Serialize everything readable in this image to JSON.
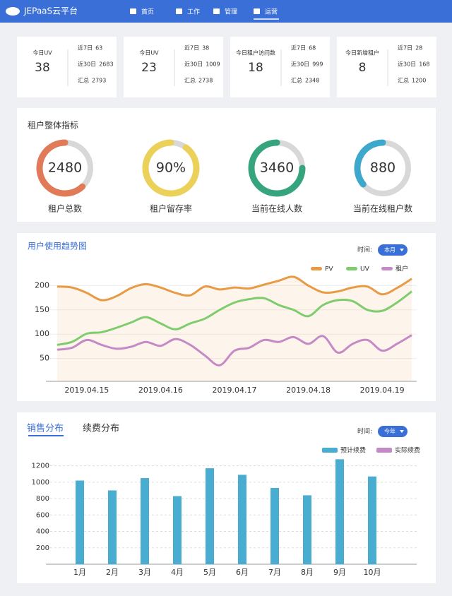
{
  "nav": {
    "brand": "JEPaaS云平台",
    "items": [
      "首页",
      "工作",
      "管理",
      "运营"
    ]
  },
  "stats": [
    {
      "label": "今日UV",
      "value": 38,
      "rows": [
        {
          "label": "近7日",
          "value": 63
        },
        {
          "label": "近30日",
          "value": 2683
        },
        {
          "label": "汇总",
          "value": 2793
        }
      ]
    },
    {
      "label": "今日UV",
      "value": 23,
      "rows": [
        {
          "label": "近7日",
          "value": 38
        },
        {
          "label": "近30日",
          "value": 1009
        },
        {
          "label": "汇总",
          "value": 2738
        }
      ]
    },
    {
      "label": "今日租户访问数",
      "value": 18,
      "rows": [
        {
          "label": "近7日",
          "value": 68
        },
        {
          "label": "近30日",
          "value": 999
        },
        {
          "label": "汇总",
          "value": 2348
        }
      ]
    },
    {
      "label": "今日新增租户",
      "value": 8,
      "rows": [
        {
          "label": "近7日",
          "value": 28
        },
        {
          "label": "近30日",
          "value": 168
        },
        {
          "label": "汇总",
          "value": 1200
        }
      ]
    }
  ],
  "overview": {
    "title": "租户整体指标",
    "gauges": [
      {
        "label": "租户总数",
        "value": 2480,
        "progress": 62,
        "color": "#e07a58"
      },
      {
        "label": "租户留存率",
        "value": 90,
        "value_label": "90%",
        "progress": 90,
        "color": "#ebd05a"
      },
      {
        "label": "当前在线人数",
        "value": 3460,
        "progress": 75,
        "color": "#36a57d"
      },
      {
        "label": "当前在线租户数",
        "value": 880,
        "progress": 36,
        "color": "#3ea8cc"
      }
    ]
  },
  "chart_data": [
    {
      "type": "line",
      "title": "用户使用趋势图",
      "time_label": "时间:",
      "period": "本月",
      "categories": [
        null,
        null,
        "2019.04.15",
        null,
        null,
        null,
        null,
        "2019.04.16",
        null,
        null,
        null,
        null,
        "2019.04.17",
        null,
        null,
        null,
        null,
        "2019.04.18",
        null,
        null,
        null,
        null,
        "2019.04.19",
        null,
        null
      ],
      "series": [
        {
          "name": "PV",
          "color": "#e89a45",
          "values": [
            198,
            196,
            185,
            170,
            178,
            195,
            203,
            196,
            185,
            180,
            198,
            192,
            196,
            194,
            202,
            210,
            218,
            200,
            186,
            188,
            196,
            198,
            182,
            195,
            214
          ]
        },
        {
          "name": "UV",
          "color": "#7fcc6e",
          "values": [
            78,
            84,
            101,
            104,
            113,
            124,
            135,
            122,
            110,
            122,
            132,
            150,
            165,
            172,
            174,
            160,
            150,
            137,
            160,
            170,
            168,
            150,
            148,
            165,
            188
          ]
        },
        {
          "name": "租户",
          "color": "#c58ac6",
          "values": [
            68,
            72,
            88,
            78,
            70,
            74,
            84,
            76,
            90,
            78,
            56,
            36,
            66,
            72,
            88,
            84,
            94,
            80,
            96,
            62,
            80,
            88,
            66,
            80,
            98
          ]
        }
      ],
      "ylim": [
        0,
        250
      ],
      "yticks": [
        50,
        100,
        150,
        200
      ],
      "grid": true,
      "legend": "top-right"
    },
    {
      "type": "bar",
      "tabs": [
        "销售分布",
        "续费分布"
      ],
      "time_label": "时间:",
      "period": "今年",
      "categories": [
        "1月",
        "2月",
        "3月",
        "4月",
        "5月",
        "6月",
        "7月",
        "8月",
        "9月",
        "10月"
      ],
      "series": [
        {
          "name": "预计续费",
          "color": "#48add0",
          "values": [
            1020,
            900,
            1050,
            830,
            1170,
            1090,
            930,
            840,
            1280,
            1070
          ]
        },
        {
          "name": "实际续费",
          "color": "#c58ac6",
          "values": [
            null,
            null,
            null,
            null,
            null,
            null,
            null,
            null,
            null,
            null
          ]
        }
      ],
      "ylim": [
        0,
        1300
      ],
      "yticks": [
        200,
        400,
        600,
        800,
        1000,
        1200
      ],
      "grid": true,
      "legend": "top-right"
    }
  ]
}
